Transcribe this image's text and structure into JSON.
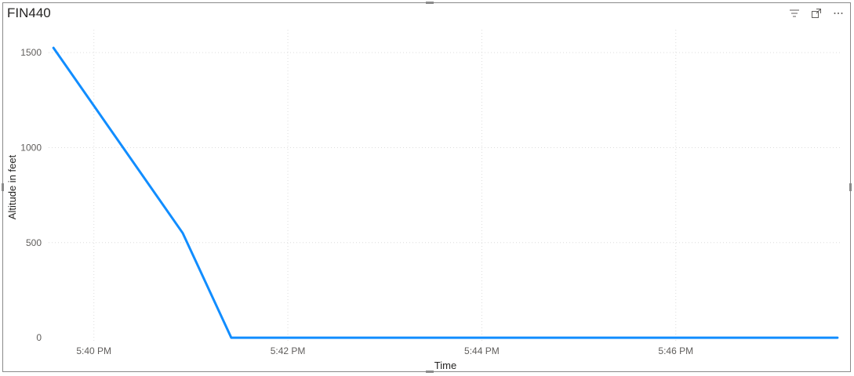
{
  "visual": {
    "title": "FIN440",
    "icons": [
      "filter-icon",
      "focus-mode-icon",
      "more-options-icon"
    ]
  },
  "chart_data": {
    "type": "line",
    "title": "FIN440",
    "xlabel": "Time",
    "ylabel": "Altitude in feet",
    "x_ticks": [
      "5:40 PM",
      "5:42 PM",
      "5:44 PM",
      "5:46 PM"
    ],
    "y_ticks": [
      0,
      500,
      1000,
      1500
    ],
    "xlim": [
      "17:39:32",
      "17:47:42"
    ],
    "ylim": [
      -20,
      1620
    ],
    "grid": true,
    "line_color": "#118DFF",
    "series": [
      {
        "points": [
          {
            "x": "17:39:35",
            "y": 1525
          },
          {
            "x": "17:40:55",
            "y": 550
          },
          {
            "x": "17:41:25",
            "y": 0
          },
          {
            "x": "17:47:40",
            "y": 0
          }
        ]
      }
    ]
  }
}
